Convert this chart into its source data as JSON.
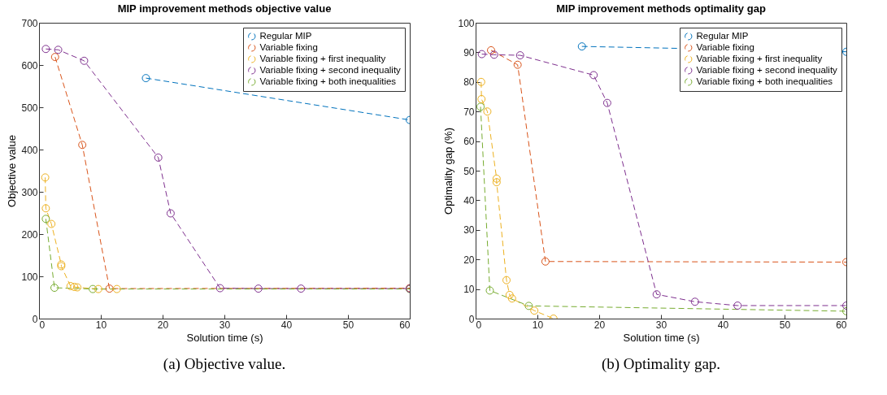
{
  "chart_data": [
    {
      "type": "line",
      "title": "MIP improvement methods objective value",
      "xlabel": "Solution time (s)",
      "ylabel": "Objective value",
      "annotations": [
        "(a) Objective value."
      ],
      "xlim": [
        0,
        60
      ],
      "xticks": [
        0,
        10,
        20,
        30,
        40,
        50,
        60
      ],
      "ylim": [
        0,
        700
      ],
      "yticks": [
        0,
        100,
        200,
        300,
        400,
        500,
        600,
        700
      ],
      "grid": false,
      "legend": "top right",
      "marker": "circle",
      "line_style": "dashed",
      "series": [
        {
          "name": "Regular MIP",
          "color": "#0072bd",
          "x": [
            17.3,
            60
          ],
          "values": [
            569,
            470
          ]
        },
        {
          "name": "Variable fixing",
          "color": "#d95319",
          "x": [
            2.6,
            7.0,
            11.4,
            60
          ],
          "values": [
            619,
            411,
            71,
            72
          ]
        },
        {
          "name": "Variable fixing + first inequality",
          "color": "#edb120",
          "x": [
            1.0,
            1.1,
            2.0,
            3.6,
            3.6,
            5.1,
            5.7,
            6.2,
            9.6,
            12.6
          ],
          "values": [
            334,
            261,
            224,
            128,
            124,
            77,
            75,
            74,
            70,
            70
          ]
        },
        {
          "name": "Variable fixing + second inequality",
          "color": "#7e2f8e",
          "x": [
            1.1,
            3.1,
            7.3,
            19.3,
            21.3,
            29.3,
            35.5,
            42.4,
            60
          ],
          "values": [
            638,
            636,
            610,
            381,
            249,
            72,
            71,
            71,
            71
          ]
        },
        {
          "name": "Variable fixing + both inequalities",
          "color": "#77ac30",
          "x": [
            1.1,
            2.5,
            8.7,
            60
          ],
          "values": [
            236,
            73,
            70,
            70
          ]
        }
      ]
    },
    {
      "type": "line",
      "title": "MIP improvement methods optimality gap",
      "xlabel": "Solution time (s)",
      "ylabel": "Optimality gap (%)",
      "annotations": [
        "(b) Optimality gap."
      ],
      "xlim": [
        0,
        60
      ],
      "xticks": [
        0,
        10,
        20,
        30,
        40,
        50,
        60
      ],
      "ylim": [
        0,
        100
      ],
      "yticks": [
        0,
        10,
        20,
        30,
        40,
        50,
        60,
        70,
        80,
        90,
        100
      ],
      "grid": false,
      "legend": "top right",
      "marker": "circle",
      "line_style": "dashed",
      "series": [
        {
          "name": "Regular MIP",
          "color": "#0072bd",
          "x": [
            17.2,
            60
          ],
          "values": [
            92.0,
            90.2
          ]
        },
        {
          "name": "Variable fixing",
          "color": "#d95319",
          "x": [
            2.5,
            6.8,
            11.3,
            60
          ],
          "values": [
            90.7,
            85.8,
            19.3,
            19.1
          ]
        },
        {
          "name": "Variable fixing + first inequality",
          "color": "#edb120",
          "x": [
            0.9,
            0.95,
            1.9,
            3.4,
            3.4,
            5.0,
            5.5,
            5.9,
            9.5,
            12.6
          ],
          "values": [
            80.0,
            74.2,
            70.0,
            47.3,
            46.1,
            13.0,
            8.0,
            6.8,
            2.7,
            0
          ]
        },
        {
          "name": "Variable fixing + second inequality",
          "color": "#7e2f8e",
          "x": [
            1.0,
            3.0,
            7.2,
            19.1,
            21.3,
            29.3,
            35.5,
            42.4,
            60
          ],
          "values": [
            89.4,
            89.2,
            89.0,
            82.3,
            72.9,
            8.2,
            5.7,
            4.4,
            4.4
          ]
        },
        {
          "name": "Variable fixing + both inequalities",
          "color": "#77ac30",
          "x": [
            0.8,
            2.3,
            8.6,
            60
          ],
          "values": [
            71.6,
            9.5,
            4.3,
            2.5
          ]
        }
      ]
    }
  ]
}
